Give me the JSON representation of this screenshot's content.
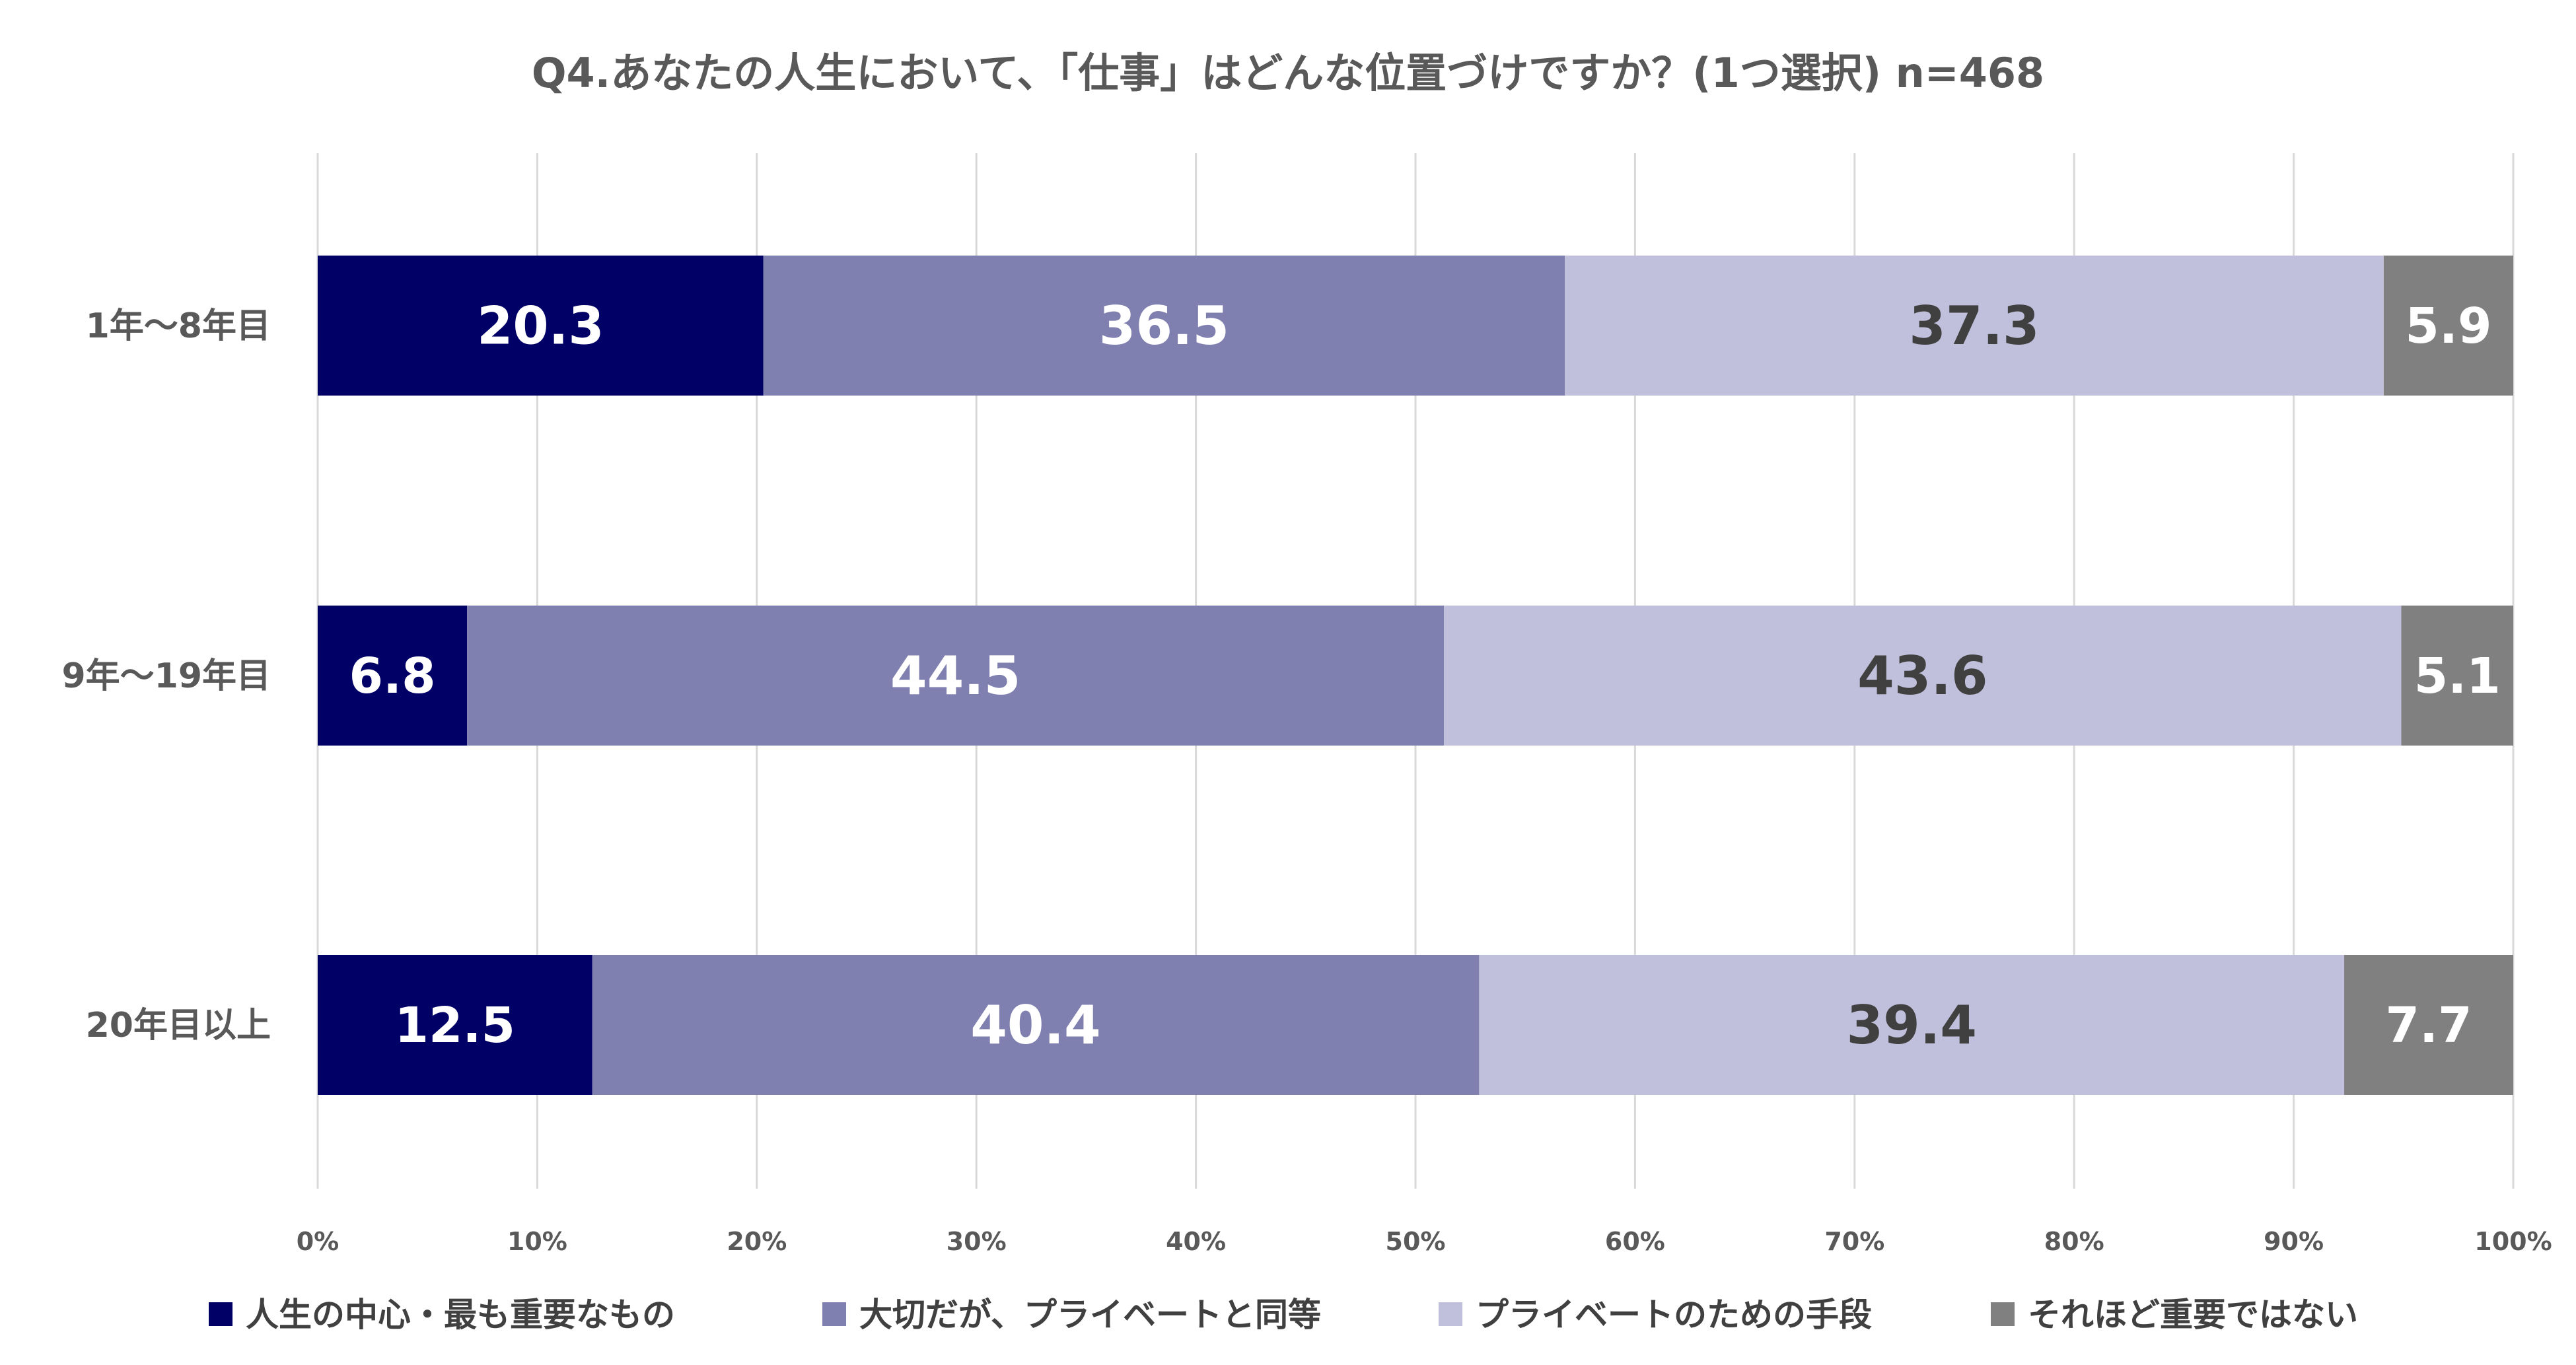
{
  "chart_data": {
    "type": "bar",
    "orientation": "horizontal",
    "stacked": "percent",
    "title": "Q4.あなたの人生において、「仕事」はどんな位置づけですか？(1つ選択) n=468",
    "categories": [
      "1年〜8年目",
      "9年〜19年目",
      "20年目以上"
    ],
    "series": [
      {
        "name": "人生の中心・最も重要なもの",
        "values": [
          20.3,
          6.8,
          12.5
        ],
        "color": "#000066",
        "label_color": "#ffffff"
      },
      {
        "name": "大切だが、プライベートと同等",
        "values": [
          36.5,
          44.5,
          40.4
        ],
        "color": "#8080b0",
        "label_color": "#ffffff"
      },
      {
        "name": "プライベートのための手段",
        "values": [
          37.3,
          43.6,
          39.4
        ],
        "color": "#c0c0dc",
        "label_color": "#404040"
      },
      {
        "name": "それほど重要ではない",
        "values": [
          5.9,
          5.1,
          7.7
        ],
        "color": "#808080",
        "label_color": "#ffffff"
      }
    ],
    "xlim": [
      0,
      100
    ],
    "x_ticks": [
      "0%",
      "10%",
      "20%",
      "30%",
      "40%",
      "50%",
      "60%",
      "70%",
      "80%",
      "90%",
      "100%"
    ],
    "grid": true,
    "legend_position": "bottom"
  }
}
